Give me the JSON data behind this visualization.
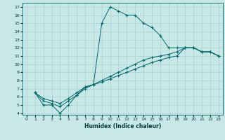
{
  "title": "",
  "xlabel": "Humidex (Indice chaleur)",
  "bg_color": "#c8e8e8",
  "grid_color": "#a8d0d0",
  "line_color": "#006868",
  "marker_color": "#006868",
  "xlim": [
    -0.5,
    23.5
  ],
  "ylim": [
    3.8,
    17.5
  ],
  "yticks": [
    4,
    5,
    6,
    7,
    8,
    9,
    10,
    11,
    12,
    13,
    14,
    15,
    16,
    17
  ],
  "xticks": [
    0,
    1,
    2,
    3,
    4,
    5,
    6,
    7,
    8,
    9,
    10,
    11,
    12,
    13,
    14,
    15,
    16,
    17,
    18,
    19,
    20,
    21,
    22,
    23
  ],
  "series": [
    {
      "x": [
        1,
        2,
        3,
        4,
        5,
        6,
        7,
        8,
        9,
        10,
        11,
        12,
        13,
        14,
        15,
        16,
        17,
        18,
        19,
        20,
        21,
        22,
        23
      ],
      "y": [
        6.5,
        5.0,
        5.0,
        4.0,
        5.0,
        6.2,
        7.2,
        7.5,
        15.0,
        17.0,
        16.5,
        16.0,
        16.0,
        15.0,
        14.5,
        13.5,
        12.0,
        12.0,
        12.0,
        12.0,
        11.5,
        11.5,
        11.0
      ]
    },
    {
      "x": [
        1,
        2,
        3,
        4,
        5,
        6,
        7,
        8,
        9,
        10,
        11,
        12,
        13,
        14,
        15,
        16,
        17,
        18,
        19,
        20,
        21,
        22,
        23
      ],
      "y": [
        6.5,
        5.8,
        5.5,
        5.2,
        5.8,
        6.5,
        7.2,
        7.5,
        8.0,
        8.5,
        9.0,
        9.5,
        10.0,
        10.5,
        10.8,
        11.0,
        11.2,
        11.5,
        12.0,
        12.0,
        11.5,
        11.5,
        11.0
      ]
    },
    {
      "x": [
        1,
        2,
        3,
        4,
        5,
        6,
        7,
        8,
        9,
        10,
        11,
        12,
        13,
        14,
        15,
        16,
        17,
        18,
        19,
        20,
        21,
        22,
        23
      ],
      "y": [
        6.5,
        5.5,
        5.2,
        4.8,
        5.5,
        6.2,
        7.0,
        7.5,
        7.8,
        8.2,
        8.6,
        9.0,
        9.4,
        9.8,
        10.2,
        10.5,
        10.8,
        11.0,
        12.0,
        12.0,
        11.5,
        11.5,
        11.0
      ]
    }
  ]
}
